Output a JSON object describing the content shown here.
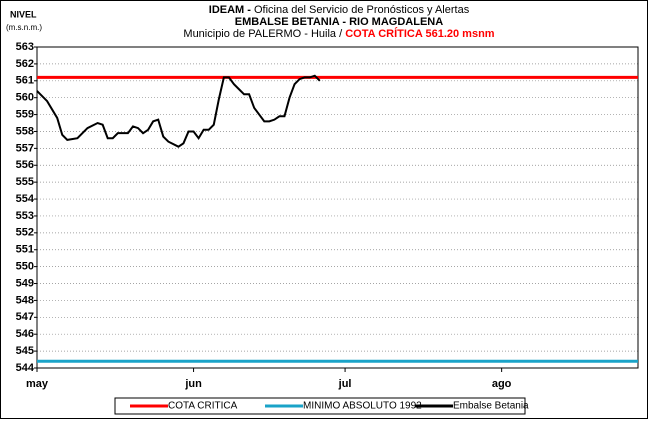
{
  "chart_data": {
    "type": "line",
    "title_bold": "IDEAM -",
    "title": "Oficina del Servicio de Pronósticos y Alertas",
    "subtitle": "EMBALSE BETANIA - RIO MAGDALENA",
    "location": "Municipio de PALERMO - Huila  /",
    "critical_label": "COTA CRÍTICA 561.20 msnm",
    "ylabel": "NIVEL",
    "yunit": "(m.s.n.m.)",
    "xlim": [
      0,
      119
    ],
    "xticks": [
      {
        "value": 0,
        "label": "may"
      },
      {
        "value": 31,
        "label": "jun"
      },
      {
        "value": 61,
        "label": "jul"
      },
      {
        "value": 92,
        "label": "ago"
      }
    ],
    "ylim": [
      544,
      563
    ],
    "yticks": [
      544,
      545,
      546,
      547,
      548,
      549,
      550,
      551,
      552,
      553,
      554,
      555,
      556,
      557,
      558,
      559,
      560,
      561,
      562,
      563
    ],
    "grid": true,
    "series": [
      {
        "name": "COTA CRITICA",
        "color": "#ff0000",
        "x": [
          0,
          119
        ],
        "values": [
          561.2,
          561.2
        ]
      },
      {
        "name": "MINIMO ABSOLUTO 1992",
        "color": "#1aa3c8",
        "x": [
          0,
          119
        ],
        "values": [
          544.4,
          544.4
        ]
      },
      {
        "name": "Embalse Betania",
        "color": "#000000",
        "x": [
          0,
          2,
          4,
          5,
          6,
          8,
          10,
          12,
          13,
          14,
          15,
          16,
          18,
          19,
          20,
          21,
          22,
          23,
          24,
          25,
          26,
          28,
          29,
          30,
          31,
          32,
          33,
          34,
          35,
          36,
          37,
          38,
          39,
          40,
          41,
          42,
          43,
          44,
          45,
          46,
          47,
          48,
          49,
          50,
          51,
          52,
          53,
          54,
          55,
          56
        ],
        "values": [
          560.4,
          559.8,
          558.8,
          557.8,
          557.5,
          557.6,
          558.2,
          558.5,
          558.4,
          557.6,
          557.6,
          557.9,
          557.9,
          558.3,
          558.2,
          557.9,
          558.1,
          558.6,
          558.7,
          557.7,
          557.4,
          557.1,
          557.3,
          558.0,
          558.0,
          557.6,
          558.1,
          558.1,
          558.4,
          559.9,
          561.2,
          561.2,
          560.8,
          560.5,
          560.2,
          560.2,
          559.4,
          559.0,
          558.6,
          558.6,
          558.7,
          558.9,
          558.9,
          560.0,
          560.8,
          561.1,
          561.2,
          561.2,
          561.3,
          561.0
        ]
      }
    ]
  }
}
